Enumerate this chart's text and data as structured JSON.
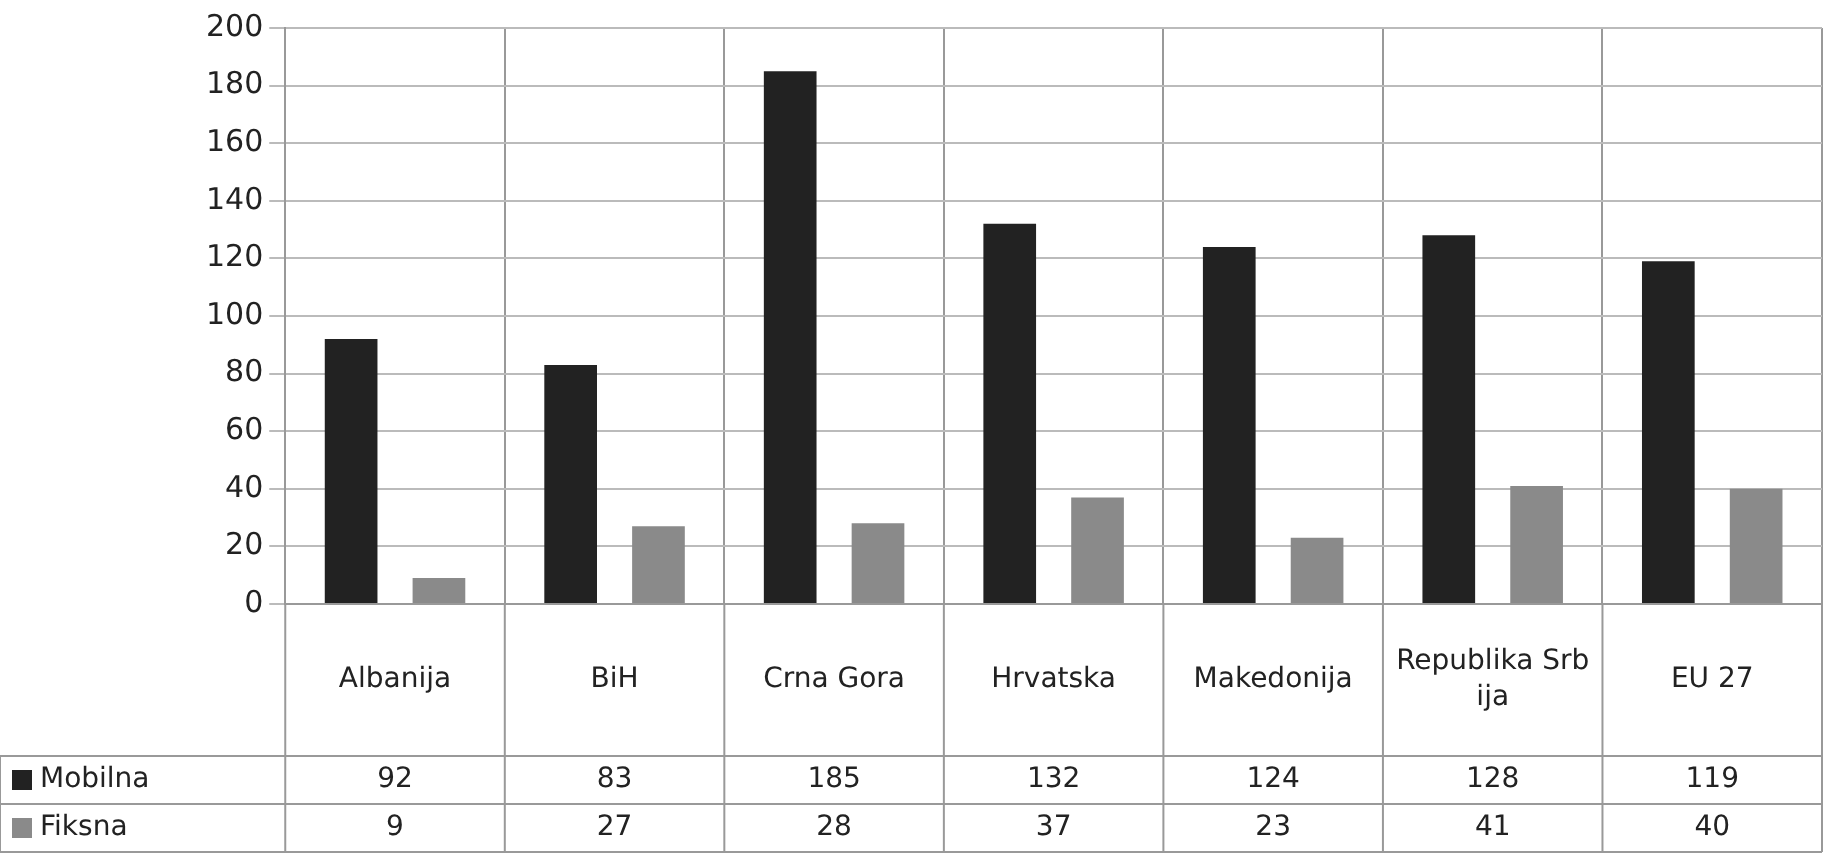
{
  "chart_data": {
    "type": "bar",
    "categories": [
      "Albanija",
      "BiH",
      "Crna Gora",
      "Hrvatska",
      "Makedonija",
      "Republika Srbija",
      "EU 27"
    ],
    "series": [
      {
        "name": "Mobilna",
        "color": "#222222",
        "values": [
          92,
          83,
          185,
          132,
          124,
          128,
          119
        ]
      },
      {
        "name": "Fiksna",
        "color": "#8a8a8a",
        "values": [
          9,
          27,
          28,
          37,
          23,
          41,
          40
        ]
      }
    ],
    "ylim": [
      0,
      200
    ],
    "yticks": [
      0,
      20,
      40,
      60,
      80,
      100,
      120,
      140,
      160,
      180,
      200
    ],
    "grid": true,
    "legend": "bottom left",
    "data_labels": true
  }
}
